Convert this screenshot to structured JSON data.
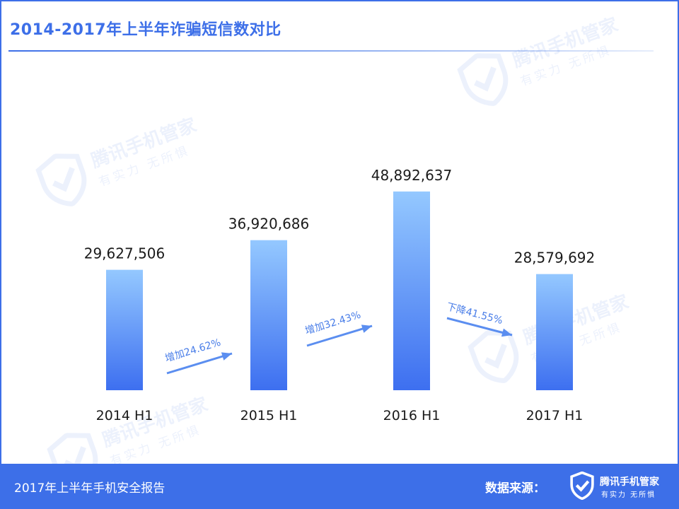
{
  "header": {
    "title": "2014-2017年上半年诈骗短信数对比"
  },
  "watermark": {
    "brand": "腾讯手机管家",
    "slogan": "有实力 无所惧"
  },
  "chart_data": {
    "type": "bar",
    "title": "2014-2017年上半年诈骗短信数对比",
    "categories": [
      "2014 H1",
      "2015 H1",
      "2016 H1",
      "2017 H1"
    ],
    "values": [
      29627506,
      36920686,
      48892637,
      28579692
    ],
    "value_labels": [
      "29,627,506",
      "36,920,686",
      "48,892,637",
      "28,579,692"
    ],
    "xlabel": "",
    "ylabel": "",
    "ylim": [
      0,
      60000000
    ],
    "grid": false,
    "annotations": [
      {
        "text": "增加24.62%",
        "from": 0,
        "to": 1
      },
      {
        "text": "增加32.43%",
        "from": 1,
        "to": 2
      },
      {
        "text": "下降41.55%",
        "from": 2,
        "to": 3
      }
    ],
    "colors": {
      "bar_top": "#94c8ff",
      "bar_bottom": "#3d6ff0",
      "arrow": "#5b8ef0",
      "annotation_text": "#4a7ee8",
      "label_text": "#1a1a1a"
    }
  },
  "footer": {
    "report": "2017年上半年手机安全报告",
    "source_label": "数据来源：",
    "logo_brand": "腾讯手机管家",
    "logo_slogan": "有实力 无所惧",
    "logo_icon": "shield-check-icon"
  }
}
